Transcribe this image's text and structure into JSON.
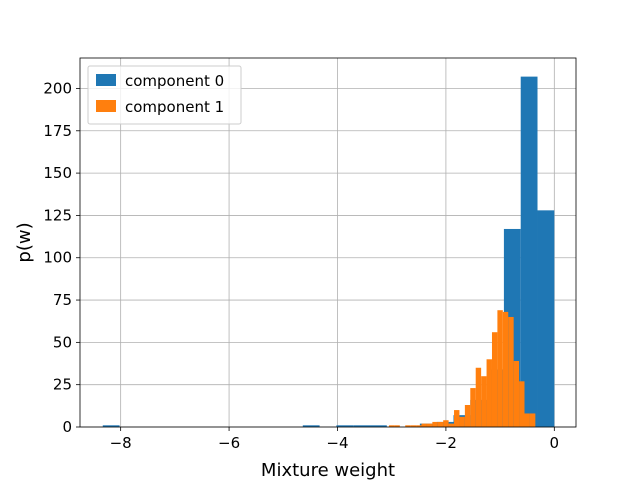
{
  "chart_data": {
    "type": "histogram",
    "xlabel": "Mixture weight",
    "ylabel": "p(w)",
    "xlim": [
      -8.75,
      0.4
    ],
    "ylim": [
      0,
      218
    ],
    "grid": true,
    "legend_position": "top-left",
    "x_ticks": [
      {
        "value": -8,
        "label": "−8"
      },
      {
        "value": -6,
        "label": "−6"
      },
      {
        "value": -4,
        "label": "−4"
      },
      {
        "value": -2,
        "label": "−2"
      },
      {
        "value": 0,
        "label": "0"
      }
    ],
    "y_ticks": [
      {
        "value": 0,
        "label": "0"
      },
      {
        "value": 25,
        "label": "25"
      },
      {
        "value": 50,
        "label": "50"
      },
      {
        "value": 75,
        "label": "75"
      },
      {
        "value": 100,
        "label": "100"
      },
      {
        "value": 125,
        "label": "125"
      },
      {
        "value": 150,
        "label": "150"
      },
      {
        "value": 175,
        "label": "175"
      },
      {
        "value": 200,
        "label": "200"
      }
    ],
    "series": [
      {
        "name": "component 0",
        "color": "#1f77b4",
        "bins": [
          {
            "x0": -8.33,
            "x1": -8.02,
            "count": 1
          },
          {
            "x0": -4.64,
            "x1": -4.33,
            "count": 1
          },
          {
            "x0": -4.02,
            "x1": -3.71,
            "count": 1
          },
          {
            "x0": -3.71,
            "x1": -3.4,
            "count": 1
          },
          {
            "x0": -3.4,
            "x1": -3.09,
            "count": 1
          },
          {
            "x0": -2.48,
            "x1": -2.17,
            "count": 2
          },
          {
            "x0": -2.17,
            "x1": -1.86,
            "count": 3
          },
          {
            "x0": -1.86,
            "x1": -1.55,
            "count": 7
          },
          {
            "x0": -1.55,
            "x1": -1.24,
            "count": 16
          },
          {
            "x0": -1.24,
            "x1": -0.93,
            "count": 34
          },
          {
            "x0": -0.93,
            "x1": -0.62,
            "count": 117
          },
          {
            "x0": -0.62,
            "x1": -0.31,
            "count": 207
          },
          {
            "x0": -0.31,
            "x1": 0.0,
            "count": 128
          }
        ]
      },
      {
        "name": "component 1",
        "color": "#ff7f0e",
        "bins": [
          {
            "x0": -3.05,
            "x1": -2.95,
            "count": 1
          },
          {
            "x0": -2.95,
            "x1": -2.85,
            "count": 1
          },
          {
            "x0": -2.75,
            "x1": -2.65,
            "count": 1
          },
          {
            "x0": -2.65,
            "x1": -2.55,
            "count": 1
          },
          {
            "x0": -2.55,
            "x1": -2.45,
            "count": 1
          },
          {
            "x0": -2.45,
            "x1": -2.35,
            "count": 2
          },
          {
            "x0": -2.35,
            "x1": -2.25,
            "count": 2
          },
          {
            "x0": -2.25,
            "x1": -2.15,
            "count": 3
          },
          {
            "x0": -2.15,
            "x1": -2.05,
            "count": 3
          },
          {
            "x0": -2.05,
            "x1": -1.95,
            "count": 4
          },
          {
            "x0": -1.95,
            "x1": -1.85,
            "count": 2
          },
          {
            "x0": -1.85,
            "x1": -1.75,
            "count": 10
          },
          {
            "x0": -1.75,
            "x1": -1.65,
            "count": 6
          },
          {
            "x0": -1.65,
            "x1": -1.55,
            "count": 13
          },
          {
            "x0": -1.55,
            "x1": -1.45,
            "count": 23
          },
          {
            "x0": -1.45,
            "x1": -1.35,
            "count": 35
          },
          {
            "x0": -1.35,
            "x1": -1.25,
            "count": 30
          },
          {
            "x0": -1.25,
            "x1": -1.15,
            "count": 40
          },
          {
            "x0": -1.15,
            "x1": -1.05,
            "count": 56
          },
          {
            "x0": -1.05,
            "x1": -0.95,
            "count": 69
          },
          {
            "x0": -0.95,
            "x1": -0.85,
            "count": 68
          },
          {
            "x0": -0.85,
            "x1": -0.75,
            "count": 65
          },
          {
            "x0": -0.75,
            "x1": -0.65,
            "count": 39
          },
          {
            "x0": -0.65,
            "x1": -0.55,
            "count": 27
          },
          {
            "x0": -0.55,
            "x1": -0.45,
            "count": 8
          },
          {
            "x0": -0.45,
            "x1": -0.35,
            "count": 8
          }
        ]
      }
    ]
  }
}
